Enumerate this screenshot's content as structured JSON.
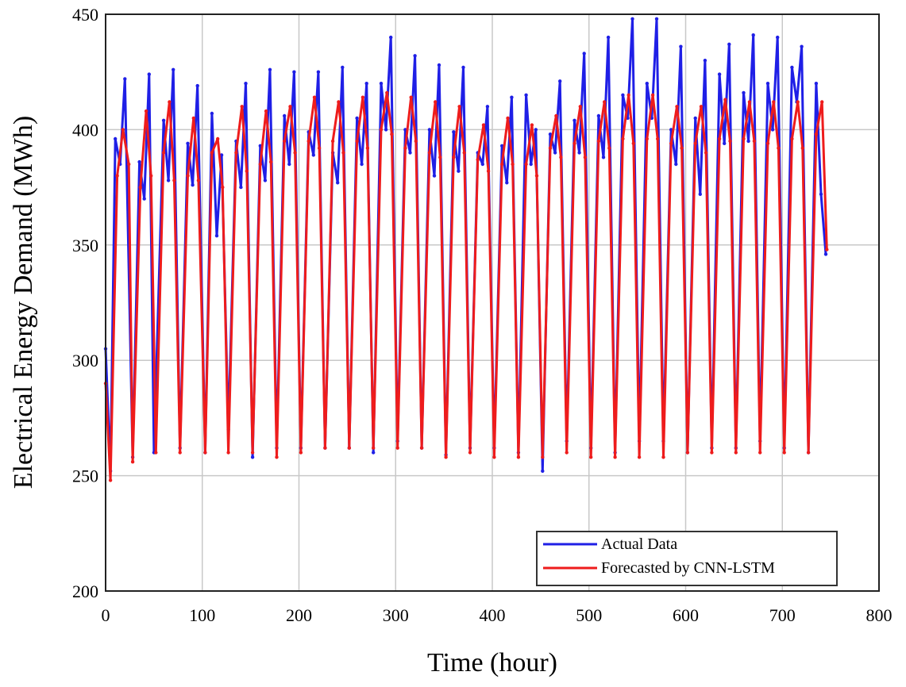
{
  "chart_data": {
    "type": "line",
    "title": "",
    "xlabel": "Time (hour)",
    "ylabel": "Electrical Energy Demand (MWh)",
    "xlim": [
      0,
      800
    ],
    "ylim": [
      200,
      450
    ],
    "xticks": [
      0,
      100,
      200,
      300,
      400,
      500,
      600,
      700,
      800
    ],
    "yticks": [
      200,
      250,
      300,
      350,
      400,
      450
    ],
    "grid": true,
    "legend_position": "bottom-right",
    "series": [
      {
        "name": "Actual Data",
        "color": "#1f1fe6",
        "x": [
          0,
          5,
          10,
          15,
          20,
          28,
          35,
          40,
          45,
          50,
          60,
          65,
          70,
          77,
          85,
          90,
          95,
          103,
          110,
          115,
          120,
          127,
          135,
          140,
          145,
          152,
          160,
          165,
          170,
          177,
          185,
          190,
          195,
          202,
          210,
          215,
          220,
          227,
          235,
          240,
          245,
          252,
          260,
          265,
          270,
          277,
          285,
          290,
          295,
          302,
          310,
          315,
          320,
          327,
          335,
          340,
          345,
          352,
          360,
          365,
          370,
          377,
          385,
          390,
          395,
          402,
          410,
          415,
          420,
          427,
          435,
          440,
          445,
          452,
          460,
          465,
          470,
          477,
          485,
          490,
          495,
          502,
          510,
          515,
          520,
          527,
          535,
          540,
          545,
          552,
          560,
          565,
          570,
          577,
          585,
          590,
          595,
          602,
          610,
          615,
          620,
          627,
          635,
          640,
          645,
          652,
          660,
          665,
          670,
          677,
          685,
          690,
          695,
          702,
          710,
          715,
          720,
          727,
          735,
          740,
          745
        ],
        "y": [
          305,
          252,
          396,
          385,
          422,
          258,
          386,
          370,
          424,
          260,
          404,
          378,
          426,
          262,
          394,
          376,
          419,
          260,
          407,
          354,
          389,
          270,
          395,
          375,
          420,
          258,
          393,
          378,
          426,
          262,
          406,
          385,
          425,
          262,
          399,
          389,
          425,
          262,
          390,
          377,
          427,
          262,
          405,
          385,
          420,
          260,
          420,
          400,
          440,
          265,
          400,
          390,
          432,
          262,
          400,
          380,
          428,
          259,
          399,
          382,
          427,
          262,
          390,
          385,
          410,
          262,
          393,
          377,
          414,
          260,
          415,
          385,
          400,
          252,
          398,
          390,
          421,
          265,
          404,
          390,
          433,
          262,
          406,
          388,
          440,
          260,
          415,
          405,
          448,
          265,
          420,
          405,
          448,
          265,
          400,
          385,
          436,
          260,
          405,
          372,
          430,
          262,
          424,
          394,
          437,
          262,
          416,
          395,
          441,
          265,
          420,
          400,
          440,
          262,
          427,
          412,
          436,
          260,
          420,
          372,
          346
        ]
      },
      {
        "name": "Forecasted by CNN-LSTM",
        "color": "#ee1c1c",
        "x": [
          0,
          5,
          12,
          18,
          24,
          28,
          36,
          42,
          47,
          52,
          60,
          66,
          71,
          77,
          85,
          91,
          96,
          103,
          110,
          116,
          121,
          127,
          135,
          141,
          146,
          152,
          160,
          166,
          171,
          177,
          185,
          191,
          196,
          202,
          210,
          216,
          221,
          227,
          235,
          241,
          246,
          252,
          260,
          266,
          271,
          277,
          285,
          291,
          296,
          302,
          310,
          316,
          321,
          327,
          335,
          341,
          346,
          352,
          360,
          366,
          371,
          377,
          385,
          391,
          396,
          402,
          410,
          416,
          421,
          427,
          435,
          441,
          446,
          452,
          460,
          466,
          471,
          477,
          485,
          491,
          496,
          502,
          510,
          516,
          521,
          527,
          535,
          541,
          546,
          552,
          560,
          566,
          571,
          577,
          585,
          591,
          596,
          602,
          610,
          616,
          621,
          627,
          635,
          641,
          646,
          652,
          660,
          666,
          671,
          677,
          685,
          691,
          696,
          702,
          710,
          716,
          721,
          727,
          735,
          741,
          746
        ],
        "y": [
          290,
          248,
          380,
          400,
          385,
          256,
          375,
          408,
          380,
          260,
          390,
          412,
          378,
          260,
          380,
          405,
          378,
          260,
          390,
          396,
          375,
          260,
          390,
          410,
          382,
          260,
          385,
          408,
          386,
          258,
          395,
          410,
          390,
          260,
          395,
          414,
          392,
          262,
          395,
          412,
          390,
          262,
          395,
          414,
          392,
          262,
          400,
          416,
          398,
          262,
          392,
          414,
          395,
          262,
          390,
          412,
          388,
          258,
          388,
          410,
          390,
          260,
          387,
          402,
          382,
          258,
          385,
          405,
          385,
          258,
          385,
          402,
          380,
          258,
          392,
          406,
          388,
          260,
          394,
          410,
          388,
          258,
          395,
          412,
          392,
          258,
          396,
          415,
          394,
          258,
          396,
          415,
          396,
          258,
          394,
          410,
          392,
          260,
          394,
          410,
          390,
          260,
          396,
          413,
          395,
          260,
          396,
          412,
          395,
          260,
          394,
          412,
          392,
          260,
          396,
          412,
          392,
          260,
          398,
          412,
          348
        ]
      }
    ]
  }
}
